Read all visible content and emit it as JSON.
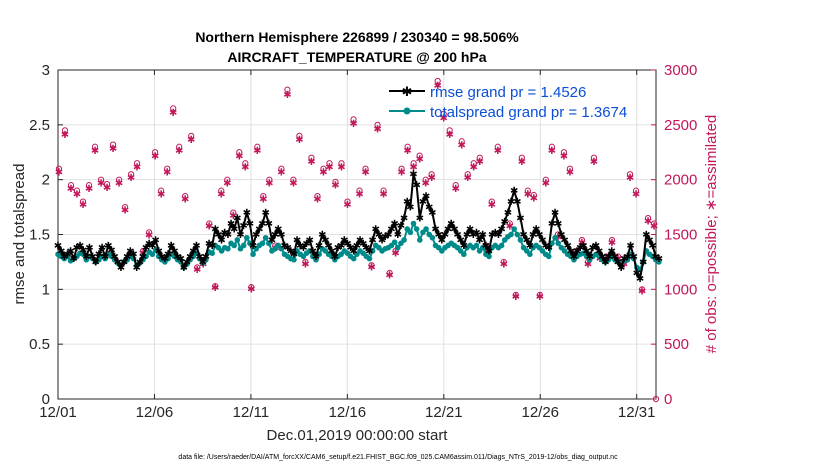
{
  "chart_data": {
    "type": "line",
    "title_line1": "Northern Hemisphere 226899 / 230340 = 98.506%",
    "title_line2": "AIRCRAFT_TEMPERATURE @ 200 hPa",
    "xlabel": "Dec.01,2019 00:00:00 start",
    "ylabel_left": "rmse and totalspread",
    "ylabel_right": "# of obs: o=possible; ∗=assimilated",
    "footer": "data file: /Users/raeder/DAI/ATM_forcXX/CAM6_setup/f.e21.FHIST_BGC.f09_025.CAM6assim.011/Diags_NTrS_2019-12/obs_diag_output.nc",
    "xlim": [
      1,
      32
    ],
    "x_ticks": [
      1,
      6,
      11,
      16,
      21,
      26,
      31
    ],
    "x_ticklabels": [
      "12/01",
      "12/06",
      "12/11",
      "12/16",
      "12/21",
      "12/26",
      "12/31"
    ],
    "ylim_left": [
      0,
      3
    ],
    "y_ticks_left": [
      "0",
      "0.5",
      "1",
      "1.5",
      "2",
      "2.5",
      "3"
    ],
    "ylim_right": [
      0,
      3000
    ],
    "y_ticks_right": [
      "0",
      "500",
      "1000",
      "1500",
      "2000",
      "2500",
      "3000"
    ],
    "colors": {
      "rmse": "#000000",
      "spread": "#008b8b",
      "obs": "#c2185b",
      "legend_text": "#0b4fd6"
    },
    "series": [
      {
        "name": "rmse",
        "legend": "rmse grand pr = 1.4526",
        "values": [
          1.4,
          1.35,
          1.3,
          1.32,
          1.35,
          1.28,
          1.38,
          1.4,
          1.36,
          1.3,
          1.38,
          1.3,
          1.25,
          1.32,
          1.38,
          1.3,
          1.4,
          1.36,
          1.3,
          1.25,
          1.2,
          1.25,
          1.3,
          1.35,
          1.32,
          1.2,
          1.25,
          1.3,
          1.38,
          1.42,
          1.4,
          1.45,
          1.35,
          1.3,
          1.28,
          1.32,
          1.4,
          1.35,
          1.3,
          1.28,
          1.2,
          1.25,
          1.3,
          1.35,
          1.4,
          1.3,
          1.25,
          1.3,
          1.42,
          1.4,
          1.55,
          1.5,
          1.45,
          1.52,
          1.5,
          1.6,
          1.55,
          1.65,
          1.5,
          1.58,
          1.7,
          1.6,
          1.4,
          1.5,
          1.55,
          1.6,
          1.7,
          1.6,
          1.45,
          1.5,
          1.55,
          1.5,
          1.4,
          1.38,
          1.35,
          1.32,
          1.45,
          1.4,
          1.38,
          1.42,
          1.45,
          1.35,
          1.3,
          1.4,
          1.5,
          1.45,
          1.4,
          1.35,
          1.3,
          1.38,
          1.4,
          1.45,
          1.42,
          1.38,
          1.35,
          1.4,
          1.45,
          1.42,
          1.38,
          1.35,
          1.45,
          1.55,
          1.5,
          1.45,
          1.48,
          1.5,
          1.55,
          1.6,
          1.5,
          1.58,
          1.65,
          1.8,
          1.75,
          2.05,
          1.95,
          1.65,
          1.8,
          1.85,
          1.75,
          1.7,
          1.55,
          1.5,
          1.45,
          1.5,
          1.55,
          1.6,
          1.55,
          1.5,
          1.45,
          1.4,
          1.5,
          1.55,
          1.5,
          1.52,
          1.45,
          1.5,
          1.4,
          1.35,
          1.5,
          1.52,
          1.5,
          1.55,
          1.62,
          1.7,
          1.8,
          1.9,
          1.8,
          1.65,
          1.5,
          1.45,
          1.4,
          1.5,
          1.55,
          1.5,
          1.45,
          1.4,
          1.38,
          1.6,
          1.7,
          1.6,
          1.5,
          1.45,
          1.4,
          1.35,
          1.3,
          1.35,
          1.38,
          1.4,
          1.35,
          1.3,
          1.38,
          1.4,
          1.35,
          1.3,
          1.25,
          1.3,
          1.35,
          1.3,
          1.25,
          1.2,
          1.28,
          1.3,
          1.4,
          1.3,
          1.15,
          1.1,
          1.25,
          1.5,
          1.45,
          1.4,
          1.3,
          1.28
        ]
      },
      {
        "name": "totalspread",
        "legend": "totalspread grand pr = 1.3674",
        "values": [
          1.32,
          1.3,
          1.28,
          1.3,
          1.26,
          1.28,
          1.3,
          1.33,
          1.32,
          1.27,
          1.3,
          1.28,
          1.25,
          1.27,
          1.3,
          1.28,
          1.32,
          1.3,
          1.27,
          1.24,
          1.22,
          1.25,
          1.27,
          1.3,
          1.28,
          1.22,
          1.24,
          1.27,
          1.3,
          1.34,
          1.32,
          1.36,
          1.3,
          1.27,
          1.25,
          1.28,
          1.32,
          1.3,
          1.27,
          1.25,
          1.2,
          1.23,
          1.27,
          1.3,
          1.33,
          1.28,
          1.24,
          1.27,
          1.34,
          1.33,
          1.4,
          1.38,
          1.35,
          1.38,
          1.37,
          1.42,
          1.4,
          1.45,
          1.37,
          1.4,
          1.47,
          1.42,
          1.32,
          1.37,
          1.4,
          1.42,
          1.47,
          1.42,
          1.35,
          1.37,
          1.4,
          1.37,
          1.32,
          1.3,
          1.28,
          1.27,
          1.35,
          1.32,
          1.3,
          1.33,
          1.35,
          1.3,
          1.27,
          1.32,
          1.37,
          1.35,
          1.32,
          1.3,
          1.27,
          1.3,
          1.32,
          1.35,
          1.33,
          1.3,
          1.28,
          1.32,
          1.35,
          1.33,
          1.3,
          1.28,
          1.35,
          1.4,
          1.38,
          1.35,
          1.37,
          1.38,
          1.4,
          1.43,
          1.38,
          1.42,
          1.45,
          1.55,
          1.52,
          1.6,
          1.55,
          1.45,
          1.52,
          1.55,
          1.5,
          1.47,
          1.4,
          1.38,
          1.35,
          1.38,
          1.4,
          1.42,
          1.4,
          1.38,
          1.35,
          1.32,
          1.38,
          1.4,
          1.38,
          1.4,
          1.35,
          1.38,
          1.32,
          1.3,
          1.38,
          1.4,
          1.38,
          1.4,
          1.45,
          1.48,
          1.5,
          1.55,
          1.5,
          1.45,
          1.38,
          1.35,
          1.32,
          1.38,
          1.4,
          1.38,
          1.35,
          1.32,
          1.3,
          1.42,
          1.47,
          1.42,
          1.38,
          1.35,
          1.32,
          1.3,
          1.27,
          1.3,
          1.32,
          1.33,
          1.3,
          1.27,
          1.3,
          1.32,
          1.3,
          1.27,
          1.25,
          1.27,
          1.3,
          1.27,
          1.25,
          1.22,
          1.26,
          1.27,
          1.32,
          1.28,
          1.2,
          1.18,
          1.25,
          1.35,
          1.32,
          1.3,
          1.27,
          1.25
        ]
      }
    ],
    "obs_possible": [
      2100,
      2450,
      1950,
      1900,
      1800,
      1950,
      2300,
      2000,
      1960,
      2320,
      2000,
      1750,
      2050,
      2150,
      1350,
      1520,
      2250,
      1900,
      2100,
      2650,
      2300,
      1850,
      2400,
      1200,
      1250,
      1600,
      1030,
      1900,
      2000,
      1700,
      2250,
      2150,
      1020,
      2300,
      1850,
      2000,
      1400,
      2100,
      2820,
      2000,
      2400,
      1250,
      2200,
      1850,
      2100,
      2150,
      1980,
      2150,
      1800,
      2550,
      1900,
      2100,
      1220,
      2500,
      1900,
      1150,
      1350,
      2100,
      2300,
      2150,
      2220,
      2000,
      2050,
      2900,
      2600,
      2450,
      1950,
      2350,
      2050,
      2150,
      2200,
      1400,
      1800,
      2300,
      1250,
      1600,
      950,
      2200,
      1900,
      1860,
      950,
      2000,
      2300,
      1500,
      2250,
      2100,
      1350,
      1450,
      1250,
      2200,
      1300,
      1300,
      1450,
      1300,
      1250,
      2050,
      1900,
      1000,
      1650,
      1600
    ]
  }
}
